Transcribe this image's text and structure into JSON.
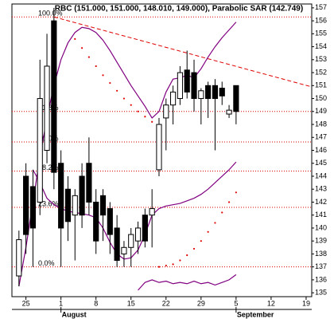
{
  "chart_data": {
    "type": "candlestick",
    "title": "RBC (151.000, 151.000, 148.010, 149.000), Parabolic SAR (142.749)",
    "x": [
      -1,
      0,
      1,
      2,
      3,
      4,
      5,
      6,
      7,
      8,
      9,
      10,
      11,
      12,
      13,
      14,
      15,
      16,
      17,
      18,
      19,
      20,
      21,
      22,
      23,
      24,
      25,
      26,
      27,
      28,
      29,
      30
    ],
    "open": [
      136.3,
      144.0,
      143.2,
      142.0,
      146.0,
      156.0,
      145.0,
      143.0,
      141.0,
      144.0,
      145.0,
      142.0,
      142.5,
      141.5,
      140.0,
      138.0,
      138.5,
      139.0,
      141.0,
      141.0,
      144.5,
      148.5,
      149.5,
      150.0,
      152.2,
      152.0,
      150.0,
      151.0,
      151.0,
      150.8,
      148.8,
      151.0
    ],
    "high": [
      139.8,
      145.0,
      144.5,
      153.0,
      155.0,
      157.0,
      146.0,
      144.0,
      143.0,
      145.0,
      147.0,
      143.0,
      143.0,
      142.0,
      141.0,
      139.0,
      140.0,
      140.5,
      141.5,
      143.0,
      148.5,
      150.0,
      151.0,
      152.5,
      153.7,
      153.0,
      150.8,
      151.3,
      151.5,
      151.3,
      149.5,
      151.0
    ],
    "low": [
      135.5,
      138.0,
      137.0,
      141.0,
      145.0,
      143.0,
      137.0,
      139.0,
      137.5,
      140.0,
      141.0,
      138.0,
      139.0,
      138.0,
      137.0,
      137.0,
      137.0,
      138.0,
      138.5,
      138.5,
      144.0,
      146.0,
      148.0,
      149.5,
      150.0,
      149.0,
      148.0,
      148.5,
      146.0,
      149.5,
      148.5,
      148.01
    ],
    "close": [
      139.1,
      139.5,
      140.0,
      150.0,
      152.5,
      144.3,
      140.0,
      140.5,
      142.5,
      141.0,
      142.0,
      139.0,
      141.0,
      139.5,
      137.5,
      138.5,
      139.5,
      140.0,
      139.0,
      141.5,
      148.0,
      149.5,
      150.5,
      152.0,
      150.5,
      150.0,
      150.6,
      150.0,
      150.0,
      150.2,
      149.1,
      149.0
    ],
    "up_color": "#ffffff",
    "down_color": "#000000",
    "sar": {
      "color": "#e00000",
      "values": [
        null,
        null,
        null,
        null,
        null,
        null,
        null,
        null,
        154.6,
        153.9,
        153.2,
        152.5,
        151.8,
        151.2,
        150.6,
        150.0,
        149.5,
        149.0,
        148.6,
        148.2,
        137.0,
        137.1,
        137.2,
        137.5,
        137.9,
        138.4,
        139.0,
        139.7,
        140.4,
        141.2,
        142.0,
        142.749
      ]
    },
    "bands": [
      {
        "color": "#800080",
        "values": [
          135.5,
          138.5,
          142.0,
          145.5,
          148.5,
          151.0,
          153.0,
          154.3,
          155.1,
          155.5,
          155.4,
          155.1,
          154.5,
          153.7,
          152.8,
          151.9,
          151.0,
          150.2,
          149.4,
          148.5,
          149.0,
          150.5,
          151.5,
          151.6,
          151.8,
          151.6,
          152.3,
          153.2,
          154.0,
          154.7,
          155.3,
          155.9
        ]
      },
      {
        "color": "#800080",
        "values": [
          null,
          null,
          144.5,
          143.5,
          142.3,
          141.8,
          141.5,
          141.3,
          141.2,
          141.1,
          141.0,
          140.8,
          140.0,
          138.9,
          138.0,
          137.6,
          137.7,
          138.3,
          139.5,
          141.0,
          141.5,
          141.7,
          141.8,
          141.9,
          142.1,
          142.3,
          142.6,
          143.0,
          143.5,
          144.0,
          144.5,
          145.1
        ]
      },
      {
        "color": "#800080",
        "values": [
          null,
          null,
          null,
          null,
          null,
          null,
          null,
          null,
          null,
          null,
          null,
          null,
          null,
          null,
          null,
          null,
          null,
          135.2,
          135.8,
          136.0,
          135.8,
          135.9,
          135.7,
          135.8,
          135.7,
          135.9,
          135.7,
          135.8,
          135.6,
          135.8,
          136.0,
          136.4
        ]
      }
    ],
    "fib": {
      "color": "#e00000",
      "labels": [
        "100.0%",
        "61.8%",
        "50.0%",
        "38.2%",
        "23.6%",
        "0.0%"
      ],
      "values": [
        156.3,
        149.0,
        146.65,
        144.4,
        141.6,
        137.0
      ]
    },
    "trendline": {
      "color": "#e00000",
      "x": [
        4,
        40.8
      ],
      "y": [
        156.3,
        150.9
      ]
    },
    "xlim": [
      -2,
      40.8
    ],
    "xticks": [
      {
        "value": 0,
        "label": "25"
      },
      {
        "value": 5,
        "label": "1"
      },
      {
        "value": 10,
        "label": "8"
      },
      {
        "value": 15,
        "label": "15"
      },
      {
        "value": 20,
        "label": "22"
      },
      {
        "value": 25,
        "label": "29"
      },
      {
        "value": 30,
        "label": "5"
      },
      {
        "value": 35,
        "label": "12"
      },
      {
        "value": 40,
        "label": "19"
      }
    ],
    "months": {
      "labels": [
        "August",
        "September"
      ],
      "x": [
        5,
        30
      ]
    },
    "ylim": [
      134.7,
      157.3
    ],
    "yticks": [
      135,
      136,
      137,
      138,
      139,
      140,
      141,
      142,
      143,
      144,
      145,
      146,
      147,
      148,
      149,
      150,
      151,
      152,
      153,
      154,
      155,
      156,
      157
    ]
  }
}
